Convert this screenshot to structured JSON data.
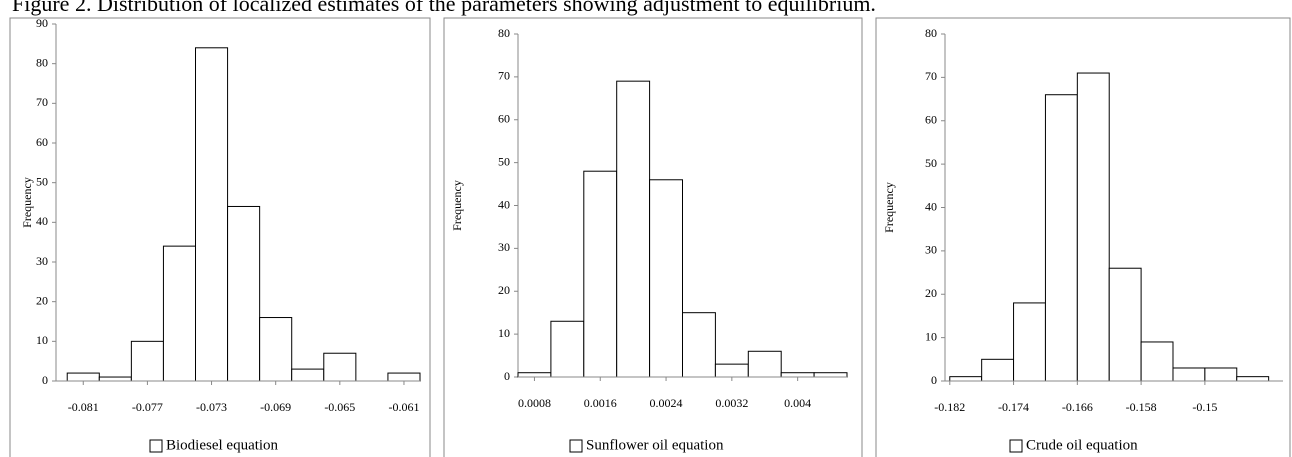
{
  "title": "Figure 2. Distribution of localized estimates of the parameters showing adjustment to equilibrium.",
  "chart_data": [
    {
      "type": "histogram",
      "ylabel": "Frequency",
      "bins": [
        -0.082,
        -0.08,
        -0.078,
        -0.076,
        -0.074,
        -0.072,
        -0.07,
        -0.068,
        -0.066,
        -0.064,
        -0.062,
        -0.06
      ],
      "series": [
        {
          "name": "Biodiesel equation",
          "color": "#ffffff",
          "values": [
            2,
            1,
            10,
            34,
            84,
            44,
            16,
            3,
            7,
            0,
            2
          ]
        }
      ],
      "xlim": [
        -0.0827,
        -0.06
      ],
      "xticks": [
        -0.081,
        -0.077,
        -0.073,
        -0.069,
        -0.065,
        -0.061
      ],
      "ylim": [
        0,
        90
      ],
      "yticks": [
        0,
        10,
        20,
        30,
        40,
        50,
        60,
        70,
        80,
        90
      ]
    },
    {
      "type": "histogram",
      "ylabel": "Frequency",
      "bins": [
        0.0006,
        0.001,
        0.0014,
        0.0018,
        0.0022,
        0.0026,
        0.003,
        0.0034,
        0.0038,
        0.0042,
        0.0046
      ],
      "series": [
        {
          "name": "Sunflower oil equation",
          "color": "#ffffff",
          "values": [
            1,
            13,
            48,
            69,
            46,
            15,
            3,
            6,
            1,
            1
          ]
        }
      ],
      "xlim": [
        0.0006,
        0.0046
      ],
      "xticks": [
        0.0008,
        0.0016,
        0.0024,
        0.0032,
        0.004
      ],
      "ylim": [
        0,
        80
      ],
      "yticks": [
        0,
        10,
        20,
        30,
        40,
        50,
        60,
        70,
        80
      ]
    },
    {
      "type": "histogram",
      "ylabel": "Frequency",
      "bins": [
        -0.182,
        -0.178,
        -0.174,
        -0.17,
        -0.166,
        -0.162,
        -0.158,
        -0.154,
        -0.15,
        -0.146,
        -0.142
      ],
      "series": [
        {
          "name": "Crude oil equation",
          "color": "#ffffff",
          "values": [
            1,
            5,
            18,
            66,
            71,
            26,
            9,
            3,
            3,
            1
          ]
        }
      ],
      "xlim": [
        -0.1826,
        -0.1402
      ],
      "xticks": [
        -0.182,
        -0.174,
        -0.166,
        -0.158,
        -0.15
      ],
      "ylim": [
        0,
        80
      ],
      "yticks": [
        0,
        10,
        20,
        30,
        40,
        50,
        60,
        70,
        80
      ]
    }
  ]
}
